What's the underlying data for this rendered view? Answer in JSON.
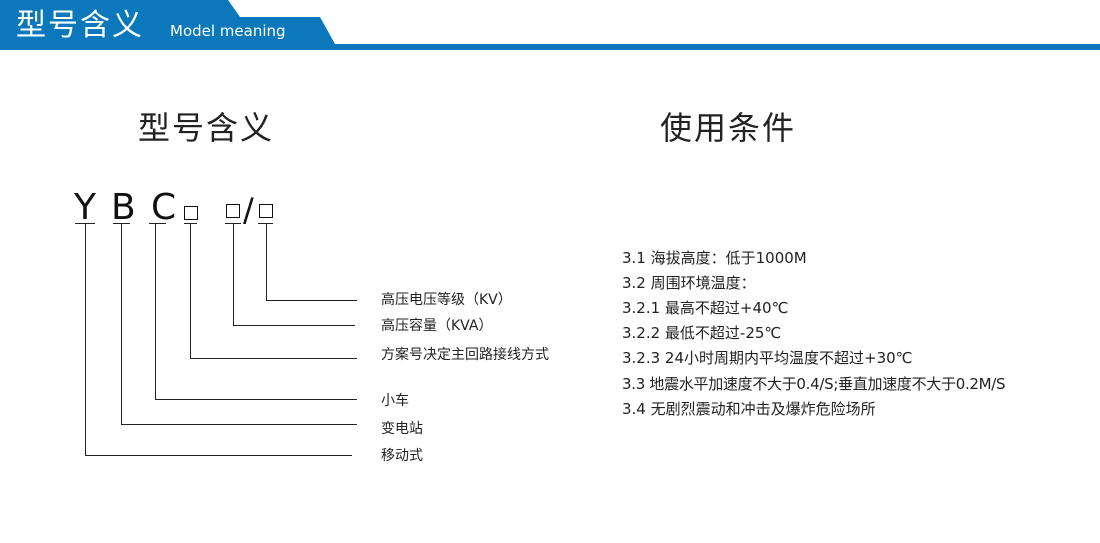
{
  "header": {
    "title": "型号含义",
    "subtitle": "Model meaning",
    "color": "#0a78ba"
  },
  "model_section": {
    "title": "型号含义",
    "code_letters": [
      "Y",
      "B",
      "C"
    ],
    "slash": "/",
    "labels": [
      "高压电压等级（KV）",
      "高压容量（KVA）",
      "方案号决定主回路接线方式",
      "小车",
      "变电站",
      "移动式"
    ]
  },
  "conditions_section": {
    "title": "使用条件",
    "items": [
      "3.1 海拔高度：低于1000M",
      "3.2 周围环境温度：",
      "3.2.1 最高不超过+40℃",
      "3.2.2 最低不超过-25℃",
      "3.2.3 24小时周期内平均温度不超过+30℃",
      "3.3 地震水平加速度不大于0.4/S;垂直加速度不大于0.2M/S",
      "3.4 无剧烈震动和冲击及爆炸危险场所"
    ]
  }
}
